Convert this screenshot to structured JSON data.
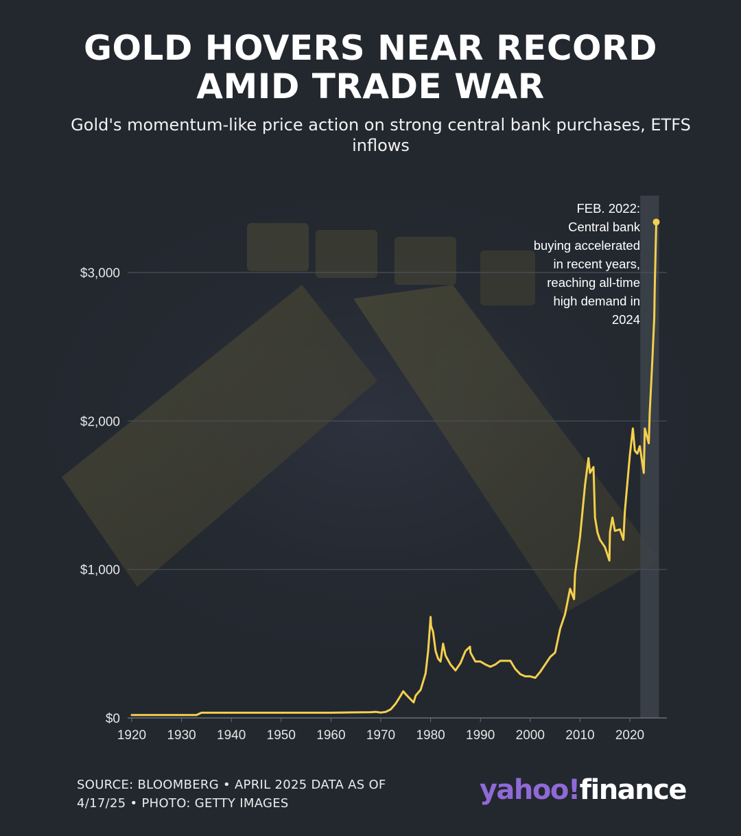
{
  "header": {
    "title_line1": "GOLD HOVERS NEAR RECORD",
    "title_line2": "AMID TRADE WAR",
    "subtitle": "Gold's momentum-like price action on strong central bank purchases, ETFS inflows"
  },
  "footer": {
    "source_line1": "SOURCE: BLOOMBERG • APRIL 2025 DATA AS OF",
    "source_line2": "4/17/25 • PHOTO: GETTY IMAGES",
    "logo_yahoo": "yahoo!",
    "logo_finance": "finance"
  },
  "colors": {
    "background": "#23282f",
    "line": "#f5d04e",
    "grid": "#4c5158",
    "highlight_band": "#3f454c",
    "logo_purple": "#8f6ad6"
  },
  "chart_data": {
    "type": "line",
    "title": "GOLD HOVERS NEAR RECORD AMID TRADE WAR",
    "subtitle": "Gold's momentum-like price action on strong central bank purchases, ETFS inflows",
    "xlabel": "",
    "ylabel": "",
    "xlim": [
      1920,
      2025.3
    ],
    "ylim": [
      0,
      3300
    ],
    "x_ticks": [
      1920,
      1930,
      1940,
      1950,
      1960,
      1970,
      1980,
      1990,
      2000,
      2010,
      2020
    ],
    "y_ticks": [
      0,
      1000,
      2000,
      3000
    ],
    "y_tick_labels": [
      "$0",
      "$1,000",
      "$2,000",
      "$3,000"
    ],
    "grid": true,
    "highlight": {
      "x_start": 2022.1,
      "x_end": 2025.3
    },
    "annotation": {
      "lines": [
        "FEB. 2022:",
        "Central bank",
        "buying accelerated",
        "in recent years,",
        "reaching all-time",
        "high demand in",
        "2024"
      ]
    },
    "series": [
      {
        "x": [
          1920,
          1925,
          1930,
          1933,
          1934,
          1940,
          1950,
          1960,
          1968,
          1969,
          1970,
          1971,
          1972,
          1973,
          1974,
          1974.5,
          1975,
          1976,
          1976.6,
          1977,
          1978,
          1979,
          1979.5,
          1980,
          1980.1,
          1980.5,
          1981,
          1981.5,
          1982,
          1982.5,
          1983,
          1984,
          1985,
          1986,
          1987,
          1987.9,
          1988,
          1989,
          1990,
          1991,
          1992,
          1993,
          1994,
          1995,
          1996,
          1997,
          1998,
          1999,
          2000,
          2001,
          2002,
          2003,
          2004,
          2005,
          2006,
          2007,
          2008,
          2008.8,
          2009,
          2010,
          2011,
          2011.7,
          2012,
          2012.7,
          2013,
          2013.5,
          2014,
          2015,
          2015.9,
          2016,
          2016.5,
          2017,
          2018,
          2018.7,
          2019,
          2020,
          2020.6,
          2021,
          2021.5,
          2022,
          2022.8,
          2023,
          2023.8,
          2024,
          2024.5,
          2024.9,
          2025,
          2025.3
        ],
        "y": [
          20,
          20,
          20,
          20,
          35,
          35,
          35,
          35,
          39,
          41,
          36,
          41,
          58,
          97,
          150,
          180,
          160,
          125,
          105,
          150,
          190,
          300,
          450,
          680,
          620,
          580,
          450,
          400,
          380,
          500,
          420,
          360,
          320,
          370,
          450,
          480,
          440,
          380,
          380,
          360,
          345,
          360,
          385,
          385,
          385,
          330,
          295,
          280,
          280,
          270,
          310,
          360,
          410,
          440,
          600,
          700,
          870,
          800,
          970,
          1220,
          1570,
          1750,
          1650,
          1690,
          1350,
          1250,
          1200,
          1150,
          1060,
          1250,
          1350,
          1260,
          1270,
          1200,
          1390,
          1770,
          1950,
          1800,
          1780,
          1830,
          1650,
          1950,
          1850,
          2060,
          2400,
          2700,
          2900,
          3340
        ]
      }
    ]
  }
}
